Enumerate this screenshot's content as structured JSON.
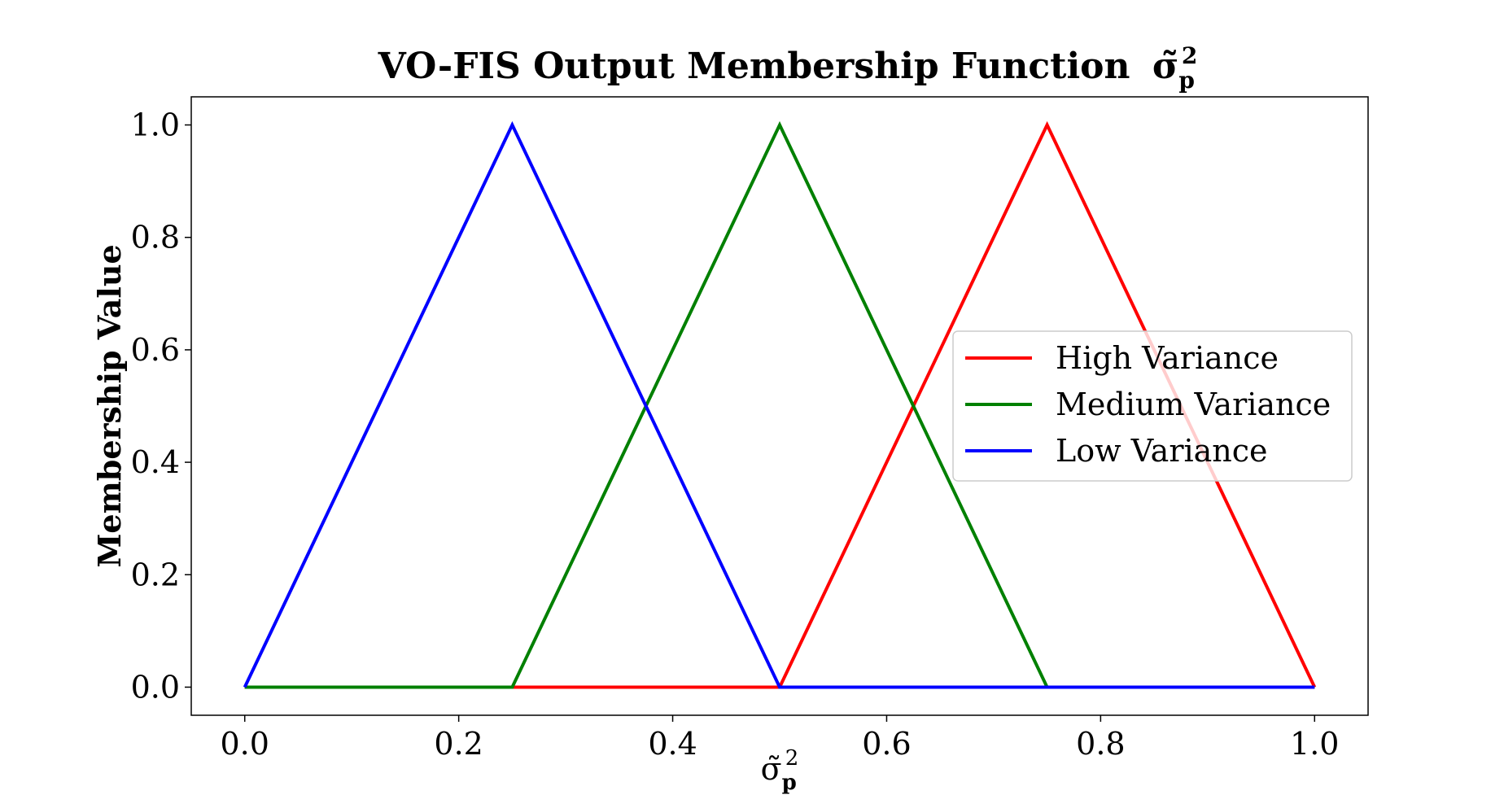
{
  "chart_data": {
    "type": "line",
    "title": "VO-FIS Output Membership Function",
    "title_symbol": "σ̃",
    "title_symbol_sub": "p",
    "title_symbol_sup": "2",
    "xlabel_symbol": "σ̃",
    "xlabel_sub": "p",
    "xlabel_sup": "2",
    "ylabel": "Membership Value",
    "xlim": [
      -0.05,
      1.05
    ],
    "ylim": [
      -0.05,
      1.05
    ],
    "xticks": [
      "0.0",
      "0.2",
      "0.4",
      "0.6",
      "0.8",
      "1.0"
    ],
    "xtick_values": [
      0.0,
      0.2,
      0.4,
      0.6,
      0.8,
      1.0
    ],
    "yticks": [
      "0.0",
      "0.2",
      "0.4",
      "0.6",
      "0.8",
      "1.0"
    ],
    "ytick_values": [
      0.0,
      0.2,
      0.4,
      0.6,
      0.8,
      1.0
    ],
    "grid": false,
    "legend_position": "center-right",
    "series": [
      {
        "name": "High Variance",
        "color": "#ff0000",
        "x": [
          0.0,
          0.25,
          0.5,
          0.75,
          1.0
        ],
        "y": [
          0,
          0,
          0,
          1,
          0
        ]
      },
      {
        "name": "Medium Variance",
        "color": "#008000",
        "x": [
          0.0,
          0.25,
          0.5,
          0.75,
          1.0
        ],
        "y": [
          0,
          0,
          1,
          0,
          0
        ]
      },
      {
        "name": "Low Variance",
        "color": "#0000ff",
        "x": [
          0.0,
          0.25,
          0.5,
          0.75,
          1.0
        ],
        "y": [
          0,
          1,
          0,
          0,
          0
        ]
      }
    ]
  }
}
